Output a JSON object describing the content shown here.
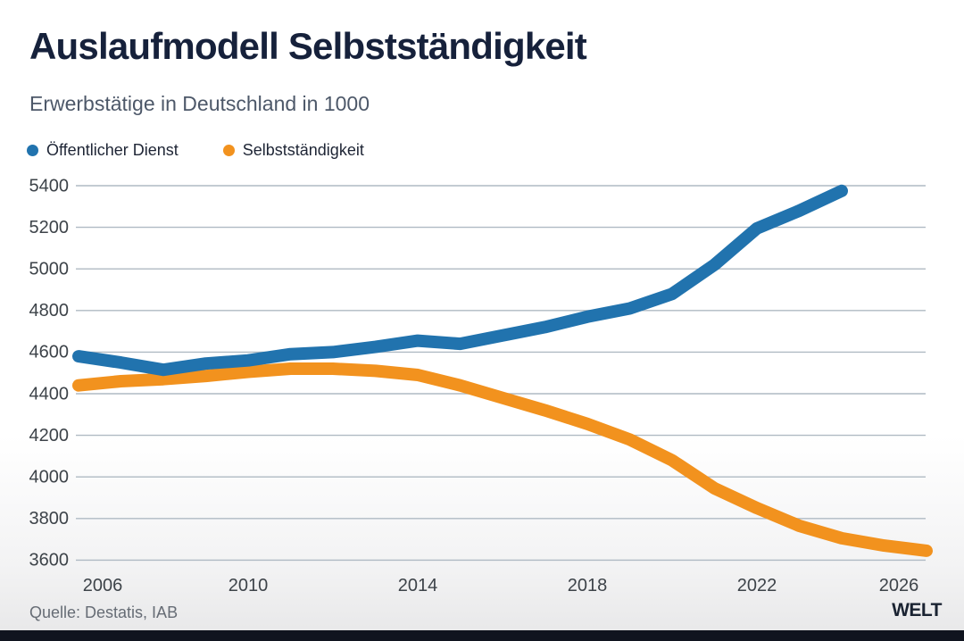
{
  "header": {
    "title": "Auslaufmodell Selbstständigkeit",
    "subtitle": "Erwerbstätige in Deutschland in 1000"
  },
  "chart_data": {
    "type": "line",
    "title": "Auslaufmodell Selbstständigkeit",
    "subtitle": "Erwerbstätige in Deutschland in 1000",
    "xlabel": "",
    "ylabel": "",
    "xlim": [
      2006,
      2026
    ],
    "ylim": [
      3600,
      5400
    ],
    "x_tick_labels": [
      "2006",
      "2010",
      "2014",
      "2018",
      "2022",
      "2026"
    ],
    "x_tick_values": [
      2006,
      2010,
      2014,
      2018,
      2022,
      2026
    ],
    "y_tick_labels": [
      "5400",
      "5200",
      "5000",
      "4800",
      "4600",
      "4400",
      "4200",
      "4000",
      "3800",
      "3600"
    ],
    "y_tick_values": [
      5400,
      5200,
      5000,
      4800,
      4600,
      4400,
      4200,
      4000,
      3800,
      3600
    ],
    "grid": "horizontal",
    "legend_position": "top-left",
    "colors": {
      "grid": "#afbac3",
      "axis_text": "#3d4349"
    },
    "series": [
      {
        "name": "Öffentlicher Dienst",
        "color": "#2173ae",
        "x": [
          2006,
          2007,
          2008,
          2009,
          2010,
          2011,
          2012,
          2013,
          2014,
          2015,
          2016,
          2017,
          2018,
          2019,
          2020,
          2021,
          2022,
          2023,
          2024
        ],
        "values": [
          4580,
          4550,
          4515,
          4545,
          4560,
          4590,
          4600,
          4625,
          4655,
          4640,
          4680,
          4720,
          4770,
          4810,
          4880,
          5020,
          5195,
          5280,
          5375
        ]
      },
      {
        "name": "Selbstständigkeit",
        "color": "#f2921e",
        "x": [
          2006,
          2007,
          2008,
          2009,
          2010,
          2011,
          2012,
          2013,
          2014,
          2015,
          2016,
          2017,
          2018,
          2019,
          2020,
          2021,
          2022,
          2023,
          2024,
          2025,
          2026
        ],
        "values": [
          4440,
          4460,
          4470,
          4485,
          4505,
          4520,
          4520,
          4510,
          4490,
          4440,
          4380,
          4320,
          4255,
          4180,
          4080,
          3945,
          3850,
          3765,
          3705,
          3670,
          3645
        ]
      }
    ]
  },
  "footer": {
    "source": "Quelle: Destatis, IAB",
    "logo": "WELT"
  }
}
